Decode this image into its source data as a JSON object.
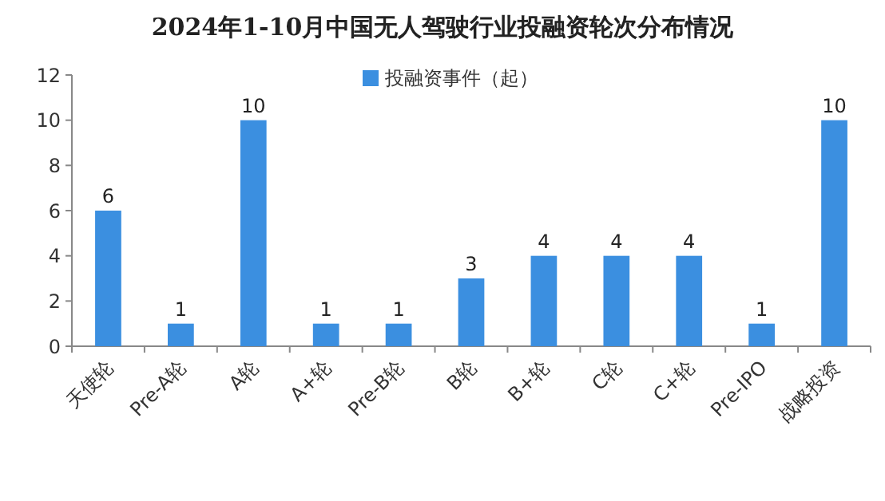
{
  "chart_data": {
    "type": "bar",
    "title": "2024年1-10月中国无人驾驶行业投融资轮次分布情况",
    "categories": [
      "天使轮",
      "Pre-A轮",
      "A轮",
      "A+轮",
      "Pre-B轮",
      "B轮",
      "B+轮",
      "C轮",
      "C+轮",
      "Pre-IPO",
      "战略投资"
    ],
    "series": [
      {
        "name": "投融资事件（起）",
        "color": "#3b8fe0",
        "values": [
          6,
          1,
          10,
          1,
          1,
          3,
          4,
          4,
          4,
          1,
          10
        ]
      }
    ],
    "ylim": [
      0,
      12
    ],
    "yticks": [
      0,
      2,
      4,
      6,
      8,
      10,
      12
    ],
    "data_labels": true,
    "legend": "top"
  }
}
